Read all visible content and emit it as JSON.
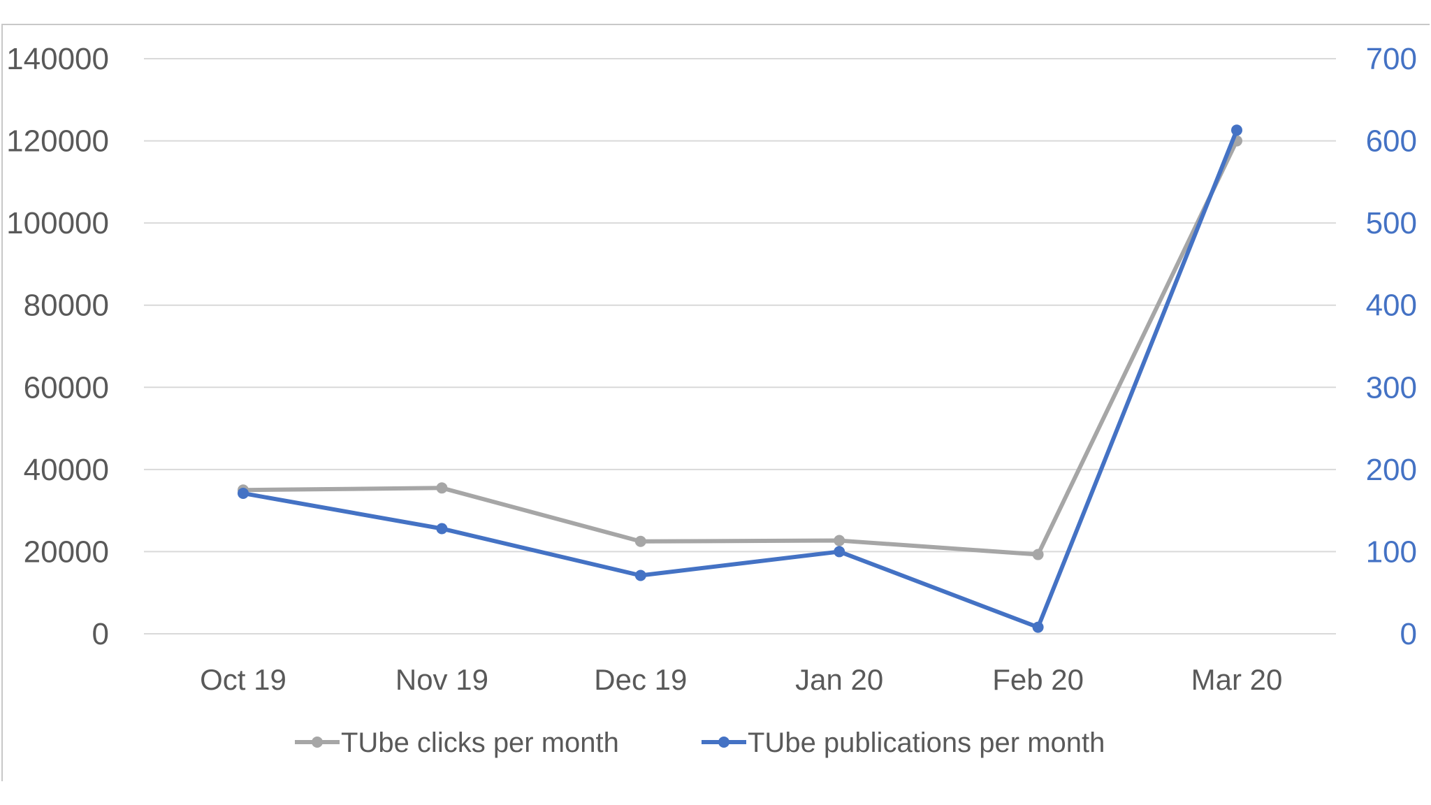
{
  "chart_data": {
    "type": "line",
    "categories": [
      "Oct 19",
      "Nov 19",
      "Dec 19",
      "Jan 20",
      "Feb 20",
      "Mar 20"
    ],
    "series": [
      {
        "name": "TUbe clicks per month",
        "axis": "left",
        "color": "#a6a6a6",
        "values": [
          35000,
          35500,
          22500,
          22700,
          19300,
          120000
        ]
      },
      {
        "name": "TUbe publications per month",
        "axis": "right",
        "color": "#4472c4",
        "values": [
          171,
          128,
          71,
          100,
          8,
          613
        ]
      }
    ],
    "y_left": {
      "ylim": [
        0,
        140000
      ],
      "ticks": [
        "0",
        "20000",
        "40000",
        "60000",
        "80000",
        "100000",
        "120000",
        "140000"
      ]
    },
    "y_right": {
      "ylim": [
        0,
        700
      ],
      "ticks": [
        "0",
        "100",
        "200",
        "300",
        "400",
        "500",
        "600",
        "700"
      ],
      "color": "#4472c4"
    },
    "grid": true,
    "legend": "bottom",
    "title": "",
    "xlabel": "",
    "ylabel": ""
  }
}
